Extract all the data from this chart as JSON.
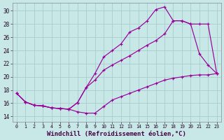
{
  "background_color": "#c8e8e8",
  "grid_color": "#a8cccc",
  "line_color": "#990099",
  "xlabel": "Windchill (Refroidissement éolien,°C)",
  "xlabel_fontsize": 6.5,
  "yticks": [
    14,
    16,
    18,
    20,
    22,
    24,
    26,
    28,
    30
  ],
  "xlim": [
    -0.5,
    23.5
  ],
  "ylim": [
    13.2,
    31.2
  ],
  "xtick_labels": [
    "0",
    "1",
    "2",
    "3",
    "4",
    "5",
    "6",
    "7",
    "8",
    "9",
    "10",
    "11",
    "12",
    "13",
    "14",
    "15",
    "16",
    "17",
    "18",
    "19",
    "20",
    "21",
    "22",
    "23"
  ],
  "line_top_x": [
    0,
    1,
    2,
    3,
    4,
    5,
    6,
    7,
    8,
    9,
    10,
    11,
    12,
    13,
    14,
    15,
    16,
    17,
    18,
    19,
    20,
    21,
    22,
    23
  ],
  "line_top_y": [
    17.5,
    16.2,
    15.7,
    15.6,
    15.3,
    15.2,
    15.1,
    16.1,
    18.4,
    20.5,
    23.0,
    24.0,
    25.0,
    26.8,
    27.4,
    28.5,
    30.2,
    30.6,
    28.5,
    28.5,
    28.0,
    23.5,
    21.8,
    20.5
  ],
  "line_mid_x": [
    0,
    1,
    2,
    3,
    4,
    5,
    6,
    7,
    8,
    9,
    10,
    11,
    12,
    13,
    14,
    15,
    16,
    17,
    18,
    19,
    20,
    21,
    22,
    23
  ],
  "line_mid_y": [
    17.5,
    16.2,
    15.7,
    15.6,
    15.3,
    15.2,
    15.1,
    16.1,
    18.4,
    19.5,
    21.0,
    21.8,
    22.5,
    23.2,
    24.0,
    24.8,
    25.5,
    26.5,
    28.5,
    28.5,
    28.0,
    28.0,
    28.0,
    20.5
  ],
  "line_bot_x": [
    0,
    1,
    2,
    3,
    4,
    5,
    6,
    7,
    8,
    9,
    10,
    11,
    12,
    13,
    14,
    15,
    16,
    17,
    18,
    19,
    20,
    21,
    22,
    23
  ],
  "line_bot_y": [
    17.5,
    16.2,
    15.7,
    15.6,
    15.3,
    15.2,
    15.1,
    14.7,
    14.5,
    14.5,
    15.5,
    16.5,
    17.0,
    17.5,
    18.0,
    18.5,
    19.0,
    19.5,
    19.8,
    20.0,
    20.2,
    20.3,
    20.3,
    20.5
  ]
}
